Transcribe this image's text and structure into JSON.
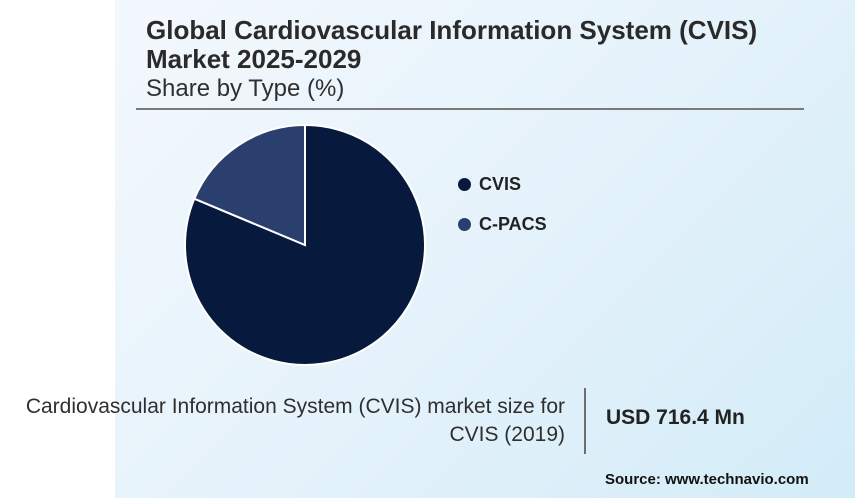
{
  "title": "Global Cardiovascular Information System (CVIS) Market 2025-2029",
  "subtitle": "Share by Type (%)",
  "chart_data": {
    "type": "pie",
    "title": "Share by Type (%)",
    "categories": [
      "CVIS",
      "C-PACS"
    ],
    "values": [
      81.3,
      18.7
    ],
    "colors": [
      "#071a3e",
      "#2b3f6e"
    ],
    "legend_position": "right"
  },
  "market": {
    "label": "Cardiovascular Information System (CVIS) market size for CVIS (2019)",
    "value": "USD 716.4 Mn"
  },
  "source": "Source: www.technavio.com"
}
